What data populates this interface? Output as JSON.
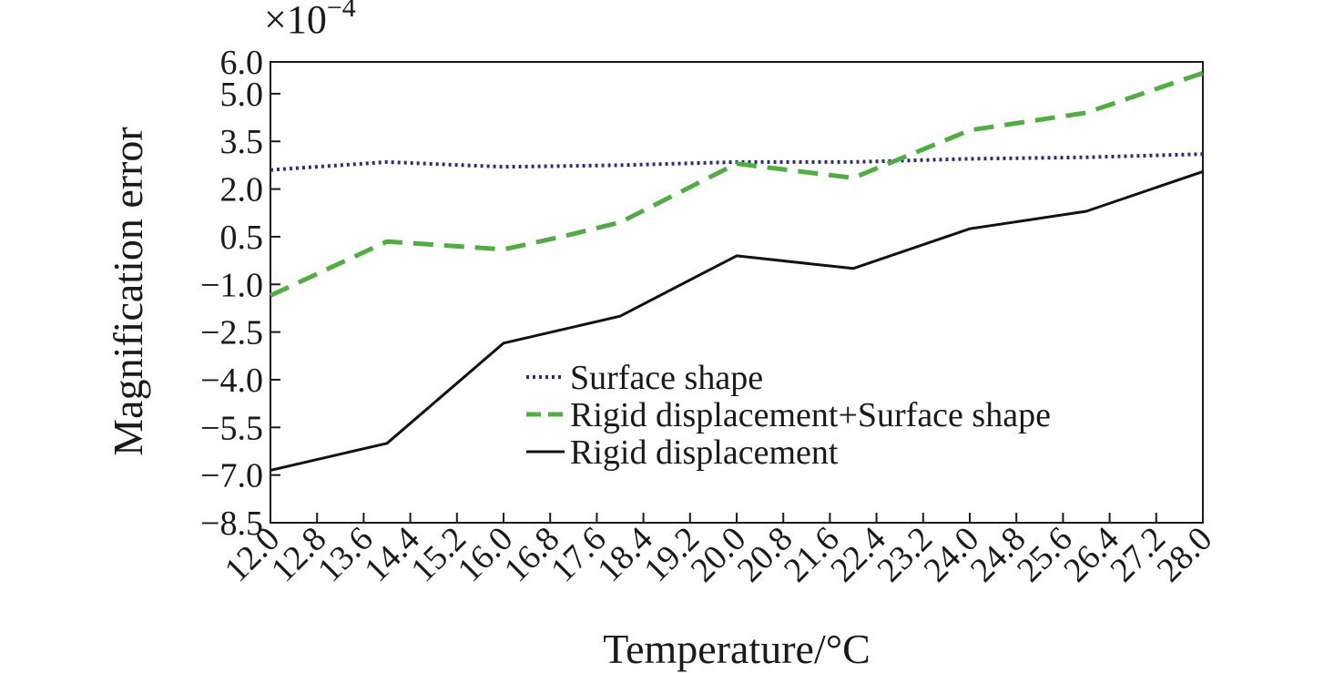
{
  "chart_data": {
    "type": "line",
    "xlabel": "Temperature/°C",
    "ylabel": "Magnification error",
    "scale_note": "×10",
    "scale_exponent": "−4",
    "xlim": [
      12.0,
      28.0
    ],
    "ylim": [
      -8.5,
      6.0
    ],
    "x_ticks": [
      "12.0",
      "12.8",
      "13.6",
      "14.4",
      "15.2",
      "16.0",
      "16.8",
      "17.6",
      "18.4",
      "19.2",
      "20.0",
      "20.8",
      "21.6",
      "22.4",
      "23.2",
      "24.0",
      "24.8",
      "25.6",
      "26.4",
      "27.2",
      "28.0"
    ],
    "y_ticks": [
      {
        "value": 6.0,
        "label": "6.0"
      },
      {
        "value": 5.0,
        "label": "5.0"
      },
      {
        "value": 3.5,
        "label": "3.5"
      },
      {
        "value": 2.0,
        "label": "2.0"
      },
      {
        "value": 0.5,
        "label": "0.5"
      },
      {
        "value": -1.0,
        "label": "−1.0"
      },
      {
        "value": -2.5,
        "label": "−2.5"
      },
      {
        "value": -4.0,
        "label": "−4.0"
      },
      {
        "value": -5.5,
        "label": "−5.5"
      },
      {
        "value": -7.0,
        "label": "−7.0"
      },
      {
        "value": -8.5,
        "label": "−8.5"
      }
    ],
    "legend_position": "bottom-center",
    "grid": false,
    "series": [
      {
        "name": "Surface shape",
        "color": "#2b2f7a",
        "style": "dotted",
        "x": [
          12.0,
          14.0,
          16.0,
          18.0,
          20.0,
          22.0,
          24.0,
          26.0,
          28.0
        ],
        "y": [
          2.6,
          2.85,
          2.7,
          2.75,
          2.85,
          2.85,
          2.95,
          3.0,
          3.1
        ]
      },
      {
        "name": "Rigid displacement+Surface shape",
        "color": "#4caf3e",
        "style": "dashed",
        "x": [
          12.0,
          14.0,
          16.0,
          17.0,
          18.0,
          20.0,
          22.0,
          24.0,
          26.0,
          28.0
        ],
        "y": [
          -1.35,
          0.35,
          0.1,
          0.5,
          0.95,
          2.8,
          2.35,
          3.85,
          4.4,
          5.65
        ]
      },
      {
        "name": "Rigid displacement",
        "color": "#111111",
        "style": "solid",
        "x": [
          12.0,
          14.0,
          16.0,
          18.0,
          20.0,
          22.0,
          24.0,
          26.0,
          28.0
        ],
        "y": [
          -6.85,
          -6.0,
          -2.85,
          -2.0,
          -0.1,
          -0.5,
          0.75,
          1.3,
          2.55
        ]
      }
    ]
  }
}
